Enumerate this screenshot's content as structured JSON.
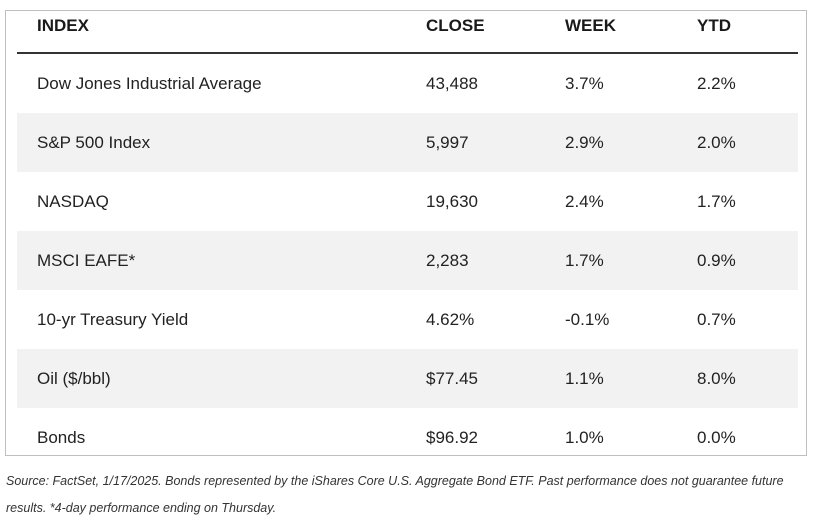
{
  "table": {
    "headers": {
      "index": "INDEX",
      "close": "CLOSE",
      "week": "WEEK",
      "ytd": "YTD"
    },
    "rows": [
      {
        "index": "Dow Jones Industrial Average",
        "close": "43,488",
        "week": "3.7%",
        "ytd": "2.2%"
      },
      {
        "index": "S&P 500 Index",
        "close": "5,997",
        "week": "2.9%",
        "ytd": "2.0%"
      },
      {
        "index": "NASDAQ",
        "close": "19,630",
        "week": "2.4%",
        "ytd": "1.7%"
      },
      {
        "index": "MSCI EAFE*",
        "close": "2,283",
        "week": "1.7%",
        "ytd": "0.9%"
      },
      {
        "index": "10-yr Treasury Yield",
        "close": "4.62%",
        "week": "-0.1%",
        "ytd": "0.7%"
      },
      {
        "index": "Oil ($/bbl)",
        "close": "$77.45",
        "week": "1.1%",
        "ytd": "8.0%"
      },
      {
        "index": "Bonds",
        "close": "$96.92",
        "week": "1.0%",
        "ytd": "0.0%"
      }
    ]
  },
  "footnote": "Source: FactSet, 1/17/2025. Bonds represented by the iShares Core U.S. Aggregate Bond ETF. Past performance does not guarantee future results. *4-day performance ending on Thursday.",
  "colors": {
    "shaded_row": "#f2f2f2",
    "header_rule": "#333333",
    "border": "#bfbfbf"
  }
}
